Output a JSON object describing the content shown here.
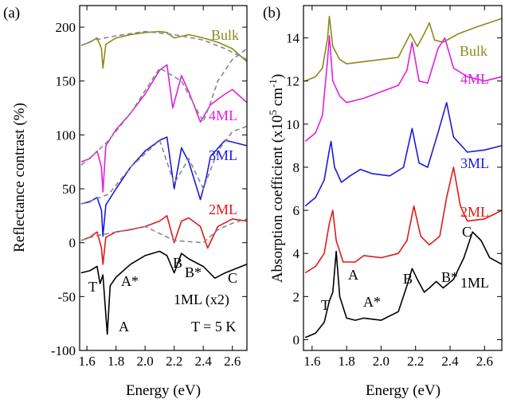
{
  "panels": [
    {
      "panel_label": "(a)",
      "chart_data": {
        "type": "line",
        "xlabel": "Energy (eV)",
        "ylabel": "Reflectance contrast (%)",
        "xlim": [
          1.55,
          2.7
        ],
        "ylim": [
          -100,
          220
        ],
        "xticks": [
          1.6,
          1.8,
          2.0,
          2.2,
          2.4,
          2.6
        ],
        "xtick_labels": [
          "1.6",
          "1.8",
          "2.0",
          "2.2",
          "2.4",
          "2.6"
        ],
        "yticks": [
          -100,
          -50,
          0,
          50,
          100,
          150,
          200
        ],
        "ytick_labels": [
          "-100",
          "-50",
          "0",
          "50",
          "100",
          "150",
          "200"
        ],
        "grid": false,
        "series": [
          {
            "name": "Bulk",
            "color": "#8a8a1a",
            "x": [
              1.56,
              1.62,
              1.67,
              1.7,
              1.71,
              1.73,
              1.8,
              1.9,
              2.0,
              2.1,
              2.15,
              2.2,
              2.3,
              2.4,
              2.5,
              2.6,
              2.7
            ],
            "y": [
              183,
              186,
              190,
              180,
              162,
              184,
              190,
              193,
              195,
              196,
              195,
              190,
              193,
              190,
              186,
              180,
              168
            ]
          },
          {
            "name": "4ML",
            "color": "#e020e0",
            "x": [
              1.56,
              1.62,
              1.67,
              1.7,
              1.71,
              1.73,
              1.8,
              1.9,
              2.0,
              2.1,
              2.15,
              2.19,
              2.25,
              2.3,
              2.38,
              2.45,
              2.55,
              2.6,
              2.7
            ],
            "y": [
              75,
              78,
              85,
              70,
              47,
              90,
              105,
              120,
              138,
              160,
              165,
              125,
              155,
              140,
              112,
              128,
              138,
              142,
              130
            ]
          },
          {
            "name": "3ML",
            "color": "#1a1ae0",
            "x": [
              1.56,
              1.62,
              1.67,
              1.7,
              1.71,
              1.73,
              1.8,
              1.9,
              2.0,
              2.1,
              2.15,
              2.2,
              2.25,
              2.3,
              2.38,
              2.42,
              2.45,
              2.55,
              2.7
            ],
            "y": [
              36,
              38,
              42,
              30,
              6,
              35,
              50,
              70,
              85,
              95,
              98,
              50,
              88,
              75,
              40,
              60,
              80,
              95,
              90
            ]
          },
          {
            "name": "2ML",
            "color": "#e01a1a",
            "x": [
              1.56,
              1.62,
              1.67,
              1.7,
              1.71,
              1.73,
              1.8,
              1.9,
              2.0,
              2.1,
              2.15,
              2.2,
              2.25,
              2.3,
              2.38,
              2.43,
              2.5,
              2.6,
              2.7
            ],
            "y": [
              2,
              5,
              10,
              -5,
              -20,
              5,
              10,
              12,
              15,
              20,
              25,
              0,
              20,
              23,
              15,
              -5,
              15,
              22,
              20
            ]
          },
          {
            "name": "1ML (x2)",
            "color": "#000000",
            "x": [
              1.56,
              1.62,
              1.67,
              1.69,
              1.71,
              1.74,
              1.76,
              1.8,
              1.9,
              2.0,
              2.1,
              2.15,
              2.2,
              2.25,
              2.3,
              2.4,
              2.48,
              2.55,
              2.7
            ],
            "y": [
              -28,
              -26,
              -22,
              -38,
              -30,
              -85,
              -40,
              -32,
              -20,
              -12,
              -8,
              -12,
              -28,
              -10,
              -15,
              -22,
              -33,
              -28,
              -20
            ]
          }
        ],
        "fits": [
          {
            "series": "Bulk",
            "style": "dashed",
            "x": [
              1.56,
              1.65,
              1.8,
              2.0,
              2.2,
              2.4,
              2.55,
              2.7
            ],
            "y": [
              183,
              188,
              192,
              196,
              193,
              188,
              180,
              170
            ]
          },
          {
            "series": "4ML",
            "style": "dashed",
            "x": [
              1.56,
              1.65,
              1.75,
              1.9,
              2.1,
              2.25,
              2.4,
              2.45,
              2.5,
              2.6,
              2.7
            ],
            "y": [
              72,
              82,
              95,
              120,
              162,
              150,
              112,
              130,
              150,
              170,
              180
            ]
          },
          {
            "series": "3ML",
            "style": "dashed",
            "x": [
              1.56,
              1.65,
              1.75,
              1.9,
              2.1,
              2.2,
              2.3,
              2.4,
              2.5,
              2.6,
              2.7
            ],
            "y": [
              36,
              40,
              45,
              70,
              95,
              55,
              78,
              50,
              85,
              103,
              108
            ]
          },
          {
            "series": "2ML",
            "style": "dashed",
            "x": [
              1.56,
              1.65,
              1.8,
              2.0,
              2.2,
              2.4,
              2.5,
              2.6,
              2.7
            ],
            "y": [
              2,
              6,
              10,
              15,
              2,
              0,
              12,
              18,
              22
            ]
          }
        ],
        "annotations": [
          "Bulk",
          "4ML",
          "3ML",
          "2ML",
          "1ML (x2)",
          "T",
          "A",
          "A*",
          "B",
          "B*",
          "C",
          "T = 5 K"
        ]
      }
    },
    {
      "panel_label": "(b)",
      "chart_data": {
        "type": "line",
        "xlabel": "Energy (eV)",
        "ylabel": "Absorption coefficient (x10⁵ cm⁻¹)",
        "xlim": [
          1.55,
          2.7
        ],
        "ylim": [
          -0.5,
          15.5
        ],
        "xticks": [
          1.6,
          1.8,
          2.0,
          2.2,
          2.4,
          2.6
        ],
        "xtick_labels": [
          "1.6",
          "1.8",
          "2.0",
          "2.2",
          "2.4",
          "2.6"
        ],
        "yticks": [
          0,
          2,
          4,
          6,
          8,
          10,
          12,
          14
        ],
        "ytick_labels": [
          "0",
          "2",
          "4",
          "6",
          "8",
          "10",
          "12",
          "14"
        ],
        "grid": false,
        "series": [
          {
            "name": "Bulk",
            "color": "#8a8a1a",
            "x": [
              1.56,
              1.62,
              1.66,
              1.69,
              1.7,
              1.72,
              1.76,
              1.8,
              1.9,
              2.0,
              2.1,
              2.17,
              2.21,
              2.25,
              2.28,
              2.31,
              2.36,
              2.45,
              2.55,
              2.7
            ],
            "y": [
              12.0,
              12.2,
              12.6,
              14.0,
              15.0,
              13.6,
              13.0,
              12.8,
              12.9,
              13.0,
              13.1,
              14.2,
              13.6,
              14.2,
              14.7,
              13.9,
              13.8,
              14.2,
              14.5,
              14.9
            ]
          },
          {
            "name": "4ML",
            "color": "#e020e0",
            "x": [
              1.56,
              1.62,
              1.66,
              1.69,
              1.7,
              1.72,
              1.76,
              1.8,
              1.9,
              2.0,
              2.1,
              2.15,
              2.18,
              2.22,
              2.27,
              2.33,
              2.37,
              2.42,
              2.5,
              2.6,
              2.7
            ],
            "y": [
              9.2,
              9.6,
              10.4,
              13.0,
              14.1,
              12.0,
              11.3,
              11.0,
              11.2,
              11.5,
              11.8,
              12.5,
              13.8,
              12.0,
              11.9,
              13.5,
              14.0,
              12.6,
              12.2,
              12.0,
              12.2
            ]
          },
          {
            "name": "3ML",
            "color": "#1a1ae0",
            "x": [
              1.56,
              1.62,
              1.67,
              1.7,
              1.71,
              1.73,
              1.77,
              1.82,
              1.88,
              1.95,
              2.05,
              2.13,
              2.18,
              2.22,
              2.27,
              2.33,
              2.38,
              2.42,
              2.5,
              2.6,
              2.7
            ],
            "y": [
              6.2,
              6.6,
              7.4,
              8.8,
              9.2,
              8.0,
              7.3,
              7.6,
              7.9,
              7.7,
              7.6,
              8.0,
              9.8,
              8.2,
              8.0,
              9.6,
              11.0,
              9.4,
              8.7,
              8.8,
              9.0
            ]
          },
          {
            "name": "2ML",
            "color": "#e01a1a",
            "x": [
              1.56,
              1.62,
              1.67,
              1.7,
              1.72,
              1.74,
              1.78,
              1.85,
              1.9,
              2.0,
              2.1,
              2.15,
              2.19,
              2.23,
              2.28,
              2.34,
              2.38,
              2.42,
              2.46,
              2.5,
              2.6,
              2.7
            ],
            "y": [
              3.1,
              3.4,
              4.0,
              5.4,
              6.0,
              4.6,
              3.6,
              3.6,
              3.9,
              3.8,
              4.0,
              4.6,
              6.2,
              4.8,
              4.4,
              4.8,
              6.6,
              8.0,
              6.2,
              5.5,
              5.6,
              6.0
            ]
          },
          {
            "name": "1ML",
            "color": "#000000",
            "x": [
              1.56,
              1.62,
              1.67,
              1.7,
              1.72,
              1.74,
              1.76,
              1.8,
              1.85,
              1.9,
              2.0,
              2.1,
              2.15,
              2.18,
              2.21,
              2.25,
              2.28,
              2.32,
              2.36,
              2.42,
              2.48,
              2.53,
              2.58,
              2.63,
              2.7
            ],
            "y": [
              0.1,
              0.3,
              0.8,
              1.8,
              2.2,
              4.1,
              2.0,
              1.0,
              0.9,
              1.0,
              0.9,
              1.3,
              2.5,
              3.3,
              2.8,
              2.2,
              2.4,
              2.7,
              2.4,
              2.8,
              3.8,
              5.0,
              4.6,
              3.8,
              3.5
            ]
          }
        ],
        "annotations": [
          "Bulk",
          "4ML",
          "3ML",
          "2ML",
          "1ML",
          "T",
          "A",
          "A*",
          "B",
          "B*",
          "C"
        ]
      }
    }
  ],
  "labels": {
    "a": {
      "panel": "(a)",
      "bulk": "Bulk",
      "ml4": "4ML",
      "ml3": "3ML",
      "ml2": "2ML",
      "ml1": "1ML (x2)",
      "T": "T",
      "A": "A",
      "Astar": "A*",
      "B": "B",
      "Bstar": "B*",
      "C": "C",
      "temp": "T = 5 K",
      "xlabel": "Energy (eV)",
      "ylabel": "Reflectance contrast (%)"
    },
    "b": {
      "panel": "(b)",
      "bulk": "Bulk",
      "ml4": "4ML",
      "ml3": "3ML",
      "ml2": "2ML",
      "ml1": "1ML",
      "T": "T",
      "A": "A",
      "Astar": "A*",
      "B": "B",
      "Bstar": "B*",
      "C": "C",
      "xlabel": "Energy (eV)",
      "ylabel_main": "Absorption coefficient (x10",
      "ylabel_sup1": "5",
      "ylabel_mid": " cm",
      "ylabel_sup2": "-1",
      "ylabel_end": ")"
    }
  }
}
